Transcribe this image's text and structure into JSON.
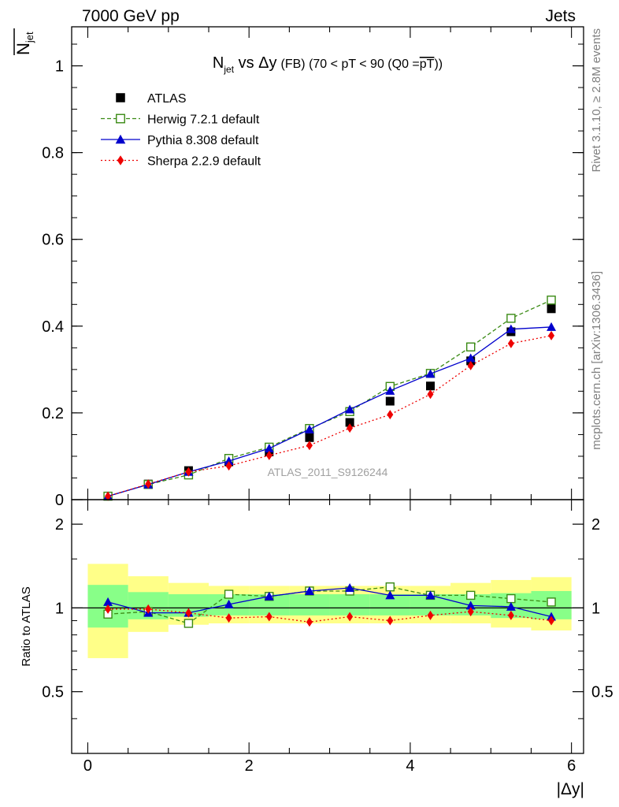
{
  "header": {
    "left": "7000 GeV pp",
    "right": "Jets"
  },
  "side_labels": {
    "rivet": "Rivet 3.1.10, ≥ 2.8M events",
    "mcplots": "mcplots.cern.ch [arXiv:1306.3436]"
  },
  "watermark": "ATLAS_2011_S9126244",
  "colors": {
    "atlas": "#000000",
    "herwig": "#3a8a14",
    "pythia": "#0000cc",
    "sherpa": "#ee0000",
    "band_outer": "#ffff88",
    "band_inner": "#88ff88"
  },
  "chart_data": [
    {
      "type": "line",
      "title": {
        "main": "N",
        "sub": "jet",
        "rest": " vs Δy",
        "small": "(FB) (70 < pT <  90 (Q0 =",
        "overline": "pT",
        "end": "))"
      },
      "ylabel": {
        "main": "N",
        "sub": "jet"
      },
      "xlim": [
        -0.2,
        6.15
      ],
      "ylim": [
        0,
        1.09
      ],
      "yticks": [
        0,
        0.2,
        0.4,
        0.6,
        0.8,
        1
      ],
      "ytick_labels": [
        "0",
        "0.2",
        "0.4",
        "0.6",
        "0.8",
        "1"
      ],
      "legend_position": "top-left",
      "x": [
        0.25,
        0.75,
        1.25,
        1.75,
        2.25,
        2.75,
        3.25,
        3.75,
        4.25,
        4.75,
        5.25,
        5.75
      ],
      "series": [
        {
          "name": "ATLAS",
          "style": "marker",
          "marker": "square-filled",
          "color": "#000000",
          "values": [
            0.008,
            0.036,
            0.067,
            0.087,
            0.11,
            0.143,
            0.178,
            0.227,
            0.262,
            0.32,
            0.387,
            0.44
          ]
        },
        {
          "name": "Herwig 7.2.1 default",
          "style": "dashed",
          "marker": "square-open",
          "color": "#3a8a14",
          "values": [
            0.008,
            0.035,
            0.057,
            0.095,
            0.121,
            0.164,
            0.203,
            0.261,
            0.291,
            0.352,
            0.418,
            0.46
          ]
        },
        {
          "name": "Pythia 8.308 default",
          "style": "solid",
          "marker": "triangle-filled",
          "color": "#0000cc",
          "values": [
            0.008,
            0.035,
            0.064,
            0.089,
            0.118,
            0.162,
            0.208,
            0.251,
            0.29,
            0.326,
            0.393,
            0.398
          ]
        },
        {
          "name": "Sherpa 2.2.9 default",
          "style": "dotted",
          "marker": "diamond-filled",
          "color": "#ee0000",
          "values": [
            0.008,
            0.036,
            0.064,
            0.078,
            0.102,
            0.125,
            0.165,
            0.196,
            0.243,
            0.309,
            0.36,
            0.378
          ]
        }
      ]
    },
    {
      "type": "line",
      "ylabel": "Ratio to ATLAS",
      "xlabel": "|Δy|",
      "xlim": [
        -0.2,
        6.15
      ],
      "ylim": [
        0.3,
        2.45
      ],
      "yscale": "log",
      "yticks": [
        0.5,
        1,
        2
      ],
      "ytick_labels": [
        "0.5",
        "1",
        "2"
      ],
      "xticks": [
        0,
        2,
        4,
        6
      ],
      "xtick_labels": [
        "0",
        "2",
        "4",
        "6"
      ],
      "x": [
        0.25,
        0.75,
        1.25,
        1.75,
        2.25,
        2.75,
        3.25,
        3.75,
        4.25,
        4.75,
        5.25,
        5.75
      ],
      "bin_edges": [
        0,
        0.5,
        1.0,
        1.5,
        2.0,
        2.5,
        3.0,
        3.5,
        4.0,
        4.5,
        5.0,
        5.5,
        6.0
      ],
      "band_outer": {
        "lo": [
          0.66,
          0.82,
          0.87,
          0.88,
          0.88,
          0.88,
          0.88,
          0.88,
          0.88,
          0.88,
          0.85,
          0.83
        ],
        "hi": [
          1.44,
          1.3,
          1.23,
          1.2,
          1.2,
          1.2,
          1.2,
          1.2,
          1.2,
          1.23,
          1.26,
          1.29
        ]
      },
      "band_inner": {
        "lo": [
          0.85,
          0.91,
          0.93,
          0.94,
          0.94,
          0.94,
          0.94,
          0.94,
          0.94,
          0.94,
          0.92,
          0.91
        ],
        "hi": [
          1.21,
          1.14,
          1.12,
          1.12,
          1.12,
          1.12,
          1.12,
          1.12,
          1.12,
          1.12,
          1.13,
          1.15
        ]
      },
      "series": [
        {
          "name": "Herwig 7.2.1 default",
          "style": "dashed",
          "marker": "square-open",
          "color": "#3a8a14",
          "values": [
            0.95,
            0.97,
            0.88,
            1.12,
            1.1,
            1.15,
            1.15,
            1.19,
            1.11,
            1.11,
            1.08,
            1.05
          ]
        },
        {
          "name": "Pythia 8.308 default",
          "style": "solid",
          "marker": "triangle-filled",
          "color": "#0000cc",
          "values": [
            1.05,
            0.96,
            0.96,
            1.03,
            1.1,
            1.15,
            1.18,
            1.11,
            1.11,
            1.02,
            1.01,
            0.93
          ]
        },
        {
          "name": "Sherpa 2.2.9 default",
          "style": "dotted",
          "marker": "diamond-filled",
          "color": "#ee0000",
          "values": [
            0.99,
            0.99,
            0.96,
            0.92,
            0.93,
            0.89,
            0.93,
            0.9,
            0.94,
            0.97,
            0.94,
            0.9
          ]
        }
      ]
    }
  ]
}
